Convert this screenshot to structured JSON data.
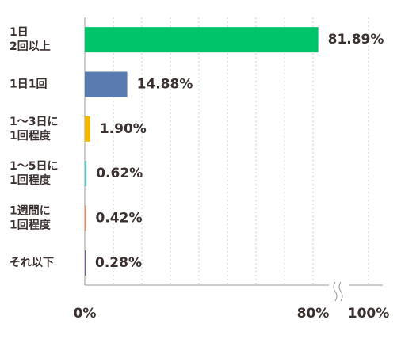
{
  "chart_data": {
    "type": "hbar",
    "categories": [
      [
        "1日",
        "2回以上"
      ],
      [
        "1日1回"
      ],
      [
        "1〜3日に",
        "1回程度"
      ],
      [
        "1〜5日に",
        "1回程度"
      ],
      [
        "1週間に",
        "1回程度"
      ],
      [
        "それ以下"
      ]
    ],
    "values": [
      81.89,
      14.88,
      1.9,
      0.62,
      0.42,
      0.28
    ],
    "value_labels": [
      "81.89%",
      "14.88%",
      "1.90%",
      "0.62%",
      "0.42%",
      "0.28%"
    ],
    "colors": [
      "#00c46a",
      "#5a7bb0",
      "#f5b800",
      "#5bc4c9",
      "#f08a5a",
      "#7a5aa0"
    ],
    "xlim": [
      0,
      100
    ],
    "xticks": [
      {
        "value": 0,
        "label": "0%"
      },
      {
        "value": 80,
        "label": "80%"
      },
      {
        "value": 100,
        "label": "100%"
      }
    ],
    "minor_xticks": [
      10,
      20,
      30,
      40,
      50,
      60,
      70
    ],
    "grid": true
  }
}
